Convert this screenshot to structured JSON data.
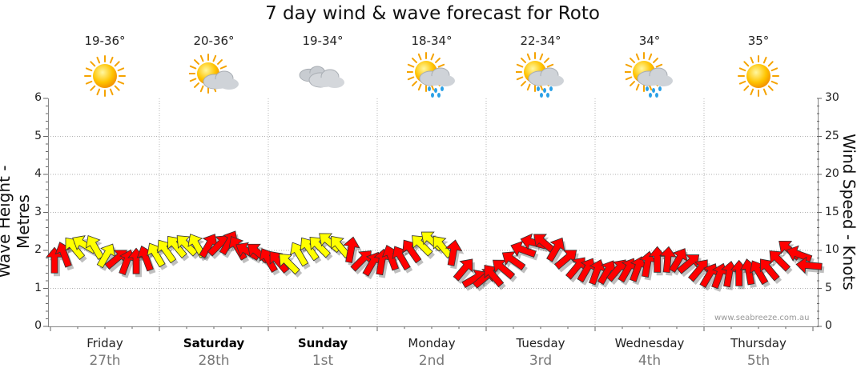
{
  "title": "7 day wind & wave forecast for Roto",
  "watermark": "www.seabreeze.com.au",
  "days": [
    {
      "temp": "19-36°",
      "icon": "sunny-icon",
      "day": "Friday",
      "date": "27th",
      "bold": false
    },
    {
      "temp": "20-36°",
      "icon": "partly-cloudy-icon",
      "day": "Saturday",
      "date": "28th",
      "bold": true
    },
    {
      "temp": "19-34°",
      "icon": "cloudy-icon",
      "day": "Sunday",
      "date": "1st",
      "bold": true
    },
    {
      "temp": "18-34°",
      "icon": "showers-icon",
      "day": "Monday",
      "date": "2nd",
      "bold": false
    },
    {
      "temp": "22-34°",
      "icon": "showers-icon",
      "day": "Tuesday",
      "date": "3rd",
      "bold": false
    },
    {
      "temp": "34°",
      "icon": "showers-icon",
      "day": "Wednesday",
      "date": "4th",
      "bold": false
    },
    {
      "temp": "35°",
      "icon": "sunny-icon",
      "day": "Thursday",
      "date": "5th",
      "bold": false
    }
  ],
  "colors": {
    "strong": "#ff0000",
    "moderate": "#ffff00",
    "outline": "#333333",
    "grid": "#999999"
  },
  "chart_data": {
    "type": "line",
    "ylabel": "Wave Height - Metres",
    "y2label": "Wind Speed - Knots",
    "ylim": [
      0,
      6
    ],
    "y2lim": [
      0,
      30
    ],
    "yticks": [
      "0",
      "1",
      "2",
      "3",
      "4",
      "5",
      "6"
    ],
    "y2ticks": [
      "0",
      "5",
      "10",
      "15",
      "20",
      "25",
      "30"
    ],
    "grid": true,
    "series": [
      {
        "values": [
          8.5,
          9.3,
          10.2,
          10.7,
          10.3,
          9.2,
          8.8,
          8.3,
          8.4,
          8.8,
          9.3,
          9.8,
          10.4,
          10.6,
          10.5,
          10.5,
          10.6,
          10.9,
          10.2,
          9.8,
          9.6,
          8.6,
          8.4,
          8.2,
          9.4,
          10.1,
          10.4,
          11.0,
          10.4,
          9.9,
          8.6,
          8.1,
          8.3,
          8.9,
          8.9,
          9.8,
          10.6,
          11.2,
          10.4,
          9.5,
          7.4,
          6.2,
          6.3,
          6.6,
          7.5,
          8.6,
          10.0,
          11.0,
          10.9,
          10.0,
          8.8,
          7.6,
          7.3,
          7.0,
          7.0,
          7.3,
          7.3,
          7.4,
          8.0,
          8.6,
          8.6,
          8.6,
          8.2,
          7.3,
          6.6,
          6.5,
          6.7,
          6.8,
          7.0,
          7.0,
          7.4,
          8.6,
          10.0,
          9.4,
          8.0
        ],
        "directions_deg": [
          270,
          250,
          230,
          210,
          240,
          300,
          320,
          290,
          270,
          250,
          240,
          235,
          230,
          225,
          240,
          300,
          315,
          300,
          240,
          210,
          220,
          240,
          230,
          225,
          240,
          235,
          225,
          220,
          230,
          280,
          315,
          300,
          280,
          250,
          240,
          235,
          225,
          220,
          230,
          280,
          310,
          330,
          320,
          230,
          220,
          215,
          200,
          195,
          220,
          300,
          320,
          310,
          300,
          290,
          300,
          310,
          300,
          290,
          280,
          270,
          275,
          300,
          320,
          310,
          300,
          290,
          280,
          270,
          260,
          240,
          230,
          225,
          220,
          200,
          185
        ]
      }
    ],
    "moderate_segments": [
      [
        2,
        5
      ],
      [
        10,
        14
      ],
      [
        23,
        28
      ],
      [
        36,
        38
      ]
    ]
  }
}
